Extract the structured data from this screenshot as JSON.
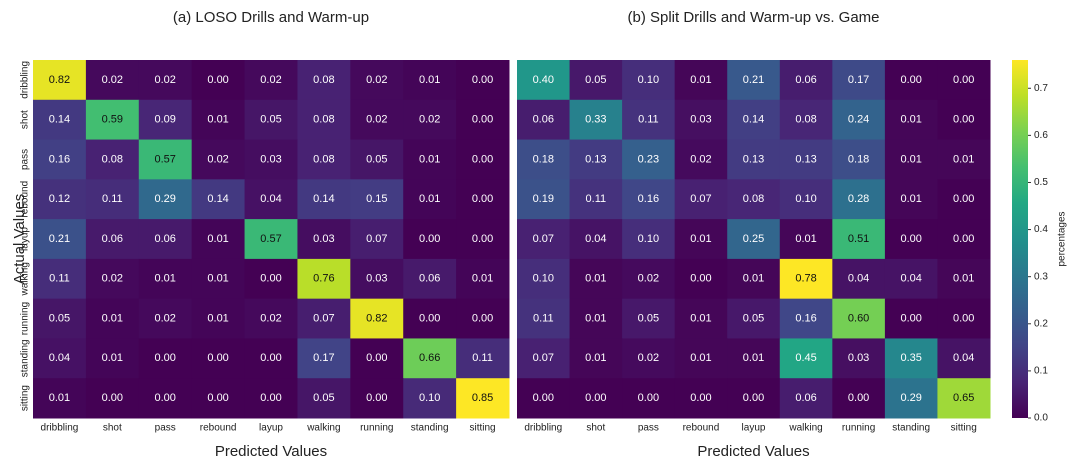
{
  "chart_data": [
    {
      "type": "heatmap",
      "title": "(a) LOSO Drills and Warm-up",
      "xlabel": "Predicted Values",
      "ylabel": "Actual Values",
      "colormap": "viridis",
      "zlim": [
        0,
        0.85
      ],
      "x_categories": [
        "dribbling",
        "shot",
        "pass",
        "rebound",
        "layup",
        "walking",
        "running",
        "standing",
        "sitting"
      ],
      "y_categories": [
        "dribbling",
        "shot",
        "pass",
        "rebound",
        "layup",
        "walking",
        "running",
        "standing",
        "sitting"
      ],
      "values": [
        [
          0.82,
          0.02,
          0.02,
          0,
          0.02,
          0.08,
          0.02,
          0.01,
          0
        ],
        [
          0.14,
          0.59,
          0.09,
          0.01,
          0.05,
          0.08,
          0.02,
          0.02,
          0
        ],
        [
          0.16,
          0.08,
          0.57,
          0.02,
          0.03,
          0.08,
          0.05,
          0.01,
          0
        ],
        [
          0.12,
          0.11,
          0.29,
          0.14,
          0.04,
          0.14,
          0.15,
          0.01,
          0
        ],
        [
          0.21,
          0.06,
          0.06,
          0.01,
          0.57,
          0.03,
          0.07,
          0,
          0
        ],
        [
          0.11,
          0.02,
          0.01,
          0.01,
          0,
          0.76,
          0.03,
          0.06,
          0.01
        ],
        [
          0.05,
          0.01,
          0.02,
          0.01,
          0.02,
          0.07,
          0.82,
          0,
          0
        ],
        [
          0.04,
          0.01,
          0,
          0,
          0,
          0.17,
          0,
          0.66,
          0.11
        ],
        [
          0.01,
          0,
          0,
          0,
          0,
          0.05,
          0,
          0.1,
          0.85
        ]
      ],
      "value_labels": [
        [
          "0.82",
          "0.02",
          "0.02",
          "0.00",
          "0.02",
          "0.08",
          "0.02",
          "0.01",
          "0.00"
        ],
        [
          "0.14",
          "0.59",
          "0.09",
          "0.01",
          "0.05",
          "0.08",
          "0.02",
          "0.02",
          "0.00"
        ],
        [
          "0.16",
          "0.08",
          "0.57",
          "0.02",
          "0.03",
          "0.08",
          "0.05",
          "0.01",
          "0.00"
        ],
        [
          "0.12",
          "0.11",
          "0.29",
          "0.14",
          "0.04",
          "0.14",
          "0.15",
          "0.01",
          "0.00"
        ],
        [
          "0.21",
          "0.06",
          "0.06",
          "0.01",
          "0.57",
          "0.03",
          "0.07",
          "0.00",
          "0.00"
        ],
        [
          "0.11",
          "0.02",
          "0.01",
          "0.01",
          "0.00",
          "0.76",
          "0.03",
          "0.06",
          "0.01"
        ],
        [
          "0.05",
          "0.01",
          "0.02",
          "0.01",
          "0.02",
          "0.07",
          "0.82",
          "0.00",
          "0.00"
        ],
        [
          "0.04",
          "0.01",
          "0.00",
          "0.00",
          "0.00",
          "0.17",
          "0.00",
          "0.66",
          "0.11"
        ],
        [
          "0.01",
          "0.00",
          "0.00",
          "0.00",
          "0.00",
          "0.05",
          "0.00",
          "0.10",
          "0.85"
        ]
      ]
    },
    {
      "type": "heatmap",
      "title": "(b) Split Drills and Warm-up vs. Game",
      "xlabel": "Predicted Values",
      "colormap": "viridis",
      "zlim": [
        0,
        0.76
      ],
      "x_categories": [
        "dribbling",
        "shot",
        "pass",
        "rebound",
        "layup",
        "walking",
        "running",
        "standing",
        "sitting"
      ],
      "values": [
        [
          0.4,
          0.05,
          0.1,
          0.01,
          0.21,
          0.06,
          0.17,
          0,
          0
        ],
        [
          0.06,
          0.33,
          0.11,
          0.03,
          0.14,
          0.08,
          0.24,
          0.01,
          0
        ],
        [
          0.18,
          0.13,
          0.23,
          0.02,
          0.13,
          0.13,
          0.18,
          0.01,
          0.01
        ],
        [
          0.19,
          0.11,
          0.16,
          0.07,
          0.08,
          0.1,
          0.28,
          0.01,
          0
        ],
        [
          0.07,
          0.04,
          0.1,
          0.01,
          0.25,
          0.01,
          0.51,
          0,
          0
        ],
        [
          0.1,
          0.01,
          0.02,
          0,
          0.01,
          0.78,
          0.04,
          0.04,
          0.01
        ],
        [
          0.11,
          0.01,
          0.05,
          0.01,
          0.05,
          0.16,
          0.6,
          0,
          0
        ],
        [
          0.07,
          0.01,
          0.02,
          0.01,
          0.01,
          0.45,
          0.03,
          0.35,
          0.04
        ],
        [
          0,
          0,
          0,
          0,
          0,
          0.06,
          0,
          0.29,
          0.65
        ]
      ],
      "value_labels": [
        [
          "0.40",
          "0.05",
          "0.10",
          "0.01",
          "0.21",
          "0.06",
          "0.17",
          "0.00",
          "0.00"
        ],
        [
          "0.06",
          "0.33",
          "0.11",
          "0.03",
          "0.14",
          "0.08",
          "0.24",
          "0.01",
          "0.00"
        ],
        [
          "0.18",
          "0.13",
          "0.23",
          "0.02",
          "0.13",
          "0.13",
          "0.18",
          "0.01",
          "0.01"
        ],
        [
          "0.19",
          "0.11",
          "0.16",
          "0.07",
          "0.08",
          "0.10",
          "0.28",
          "0.01",
          "0.00"
        ],
        [
          "0.07",
          "0.04",
          "0.10",
          "0.01",
          "0.25",
          "0.01",
          "0.51",
          "0.00",
          "0.00"
        ],
        [
          "0.10",
          "0.01",
          "0.02",
          "0.00",
          "0.01",
          "0.78",
          "0.04",
          "0.04",
          "0.01"
        ],
        [
          "0.11",
          "0.01",
          "0.05",
          "0.01",
          "0.05",
          "0.16",
          "0.60",
          "0.00",
          "0.00"
        ],
        [
          "0.07",
          "0.01",
          "0.02",
          "0.01",
          "0.01",
          "0.45",
          "0.03",
          "0.35",
          "0.04"
        ],
        [
          "0.00",
          "0.00",
          "0.00",
          "0.00",
          "0.00",
          "0.06",
          "0.00",
          "0.29",
          "0.65"
        ]
      ],
      "colorbar": {
        "label": "percentages",
        "ticks": [
          {
            "value": 0,
            "label": "0.0"
          },
          0.1,
          0.2,
          0.3,
          0.4,
          0.5,
          0.6,
          0.7
        ]
      }
    }
  ]
}
